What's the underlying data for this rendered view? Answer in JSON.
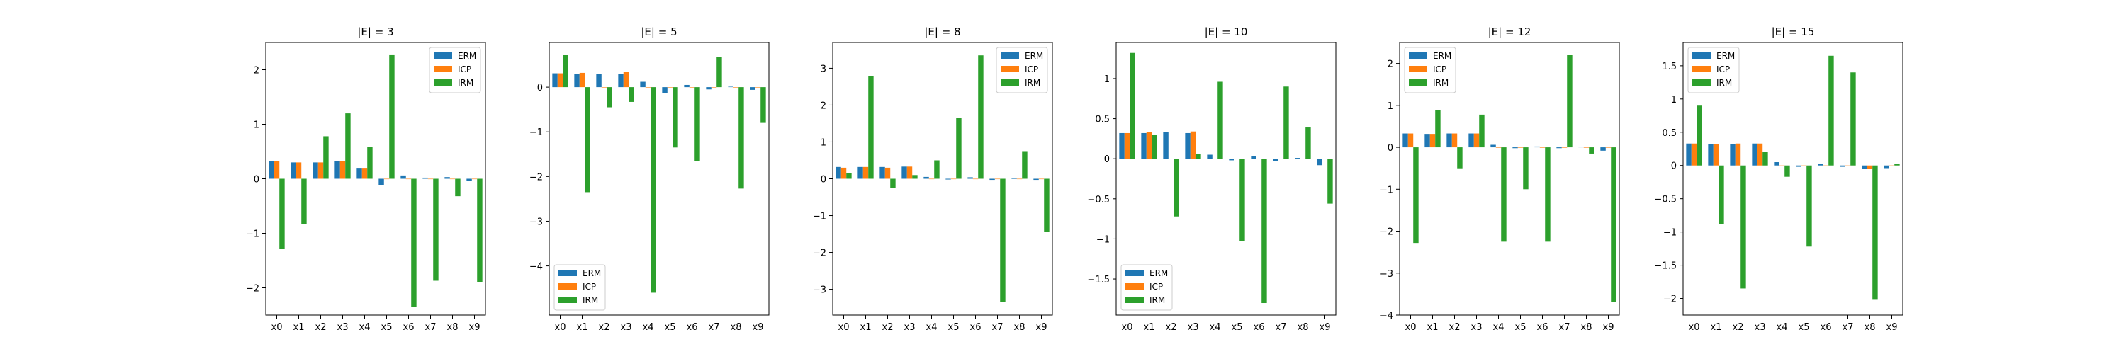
{
  "colors": {
    "ERM": "#1f77b4",
    "ICP": "#ff7f0e",
    "IRM": "#2ca02c"
  },
  "chart_data": [
    {
      "type": "bar",
      "title": "|E| = 3",
      "categories": [
        "x0",
        "x1",
        "x2",
        "x3",
        "x4",
        "x5",
        "x6",
        "x7",
        "x8",
        "x9"
      ],
      "ylim": [
        -2.5,
        2.5
      ],
      "yticks": [
        -2,
        -1,
        0,
        1,
        2
      ],
      "legend_position": "top-right",
      "series": [
        {
          "name": "ERM",
          "values": [
            0.32,
            0.3,
            0.3,
            0.33,
            0.2,
            -0.12,
            0.06,
            0.02,
            0.03,
            -0.04
          ]
        },
        {
          "name": "ICP",
          "values": [
            0.32,
            0.3,
            0.3,
            0.33,
            0.2,
            0.0,
            0.0,
            0.0,
            0.0,
            0.0
          ]
        },
        {
          "name": "IRM",
          "values": [
            -1.28,
            -0.83,
            0.78,
            1.2,
            0.58,
            2.28,
            -2.35,
            -1.87,
            -0.32,
            -1.9
          ]
        }
      ]
    },
    {
      "type": "bar",
      "title": "|E| = 5",
      "categories": [
        "x0",
        "x1",
        "x2",
        "x3",
        "x4",
        "x5",
        "x6",
        "x7",
        "x8",
        "x9"
      ],
      "ylim": [
        -5.1,
        1.0
      ],
      "yticks": [
        -4,
        -3,
        -2,
        -1,
        0
      ],
      "legend_position": "bottom-left",
      "series": [
        {
          "name": "ERM",
          "values": [
            0.31,
            0.3,
            0.3,
            0.3,
            0.12,
            -0.13,
            0.05,
            -0.05,
            0.01,
            -0.06
          ]
        },
        {
          "name": "ICP",
          "values": [
            0.31,
            0.32,
            0.0,
            0.35,
            0.0,
            0.0,
            0.0,
            0.0,
            0.0,
            0.0
          ]
        },
        {
          "name": "IRM",
          "values": [
            0.73,
            -2.35,
            -0.45,
            -0.33,
            -4.6,
            -1.35,
            -1.65,
            0.68,
            -2.27,
            -0.8
          ]
        }
      ]
    },
    {
      "type": "bar",
      "title": "|E| = 8",
      "categories": [
        "x0",
        "x1",
        "x2",
        "x3",
        "x4",
        "x5",
        "x6",
        "x7",
        "x8",
        "x9"
      ],
      "ylim": [
        -3.7,
        3.7
      ],
      "yticks": [
        -3,
        -2,
        -1,
        0,
        1,
        2,
        3
      ],
      "legend_position": "top-right",
      "series": [
        {
          "name": "ERM",
          "values": [
            0.32,
            0.32,
            0.32,
            0.33,
            0.05,
            -0.02,
            0.04,
            -0.03,
            0.01,
            -0.03
          ]
        },
        {
          "name": "ICP",
          "values": [
            0.3,
            0.32,
            0.3,
            0.33,
            0.0,
            0.0,
            0.0,
            0.0,
            0.0,
            0.0
          ]
        },
        {
          "name": "IRM",
          "values": [
            0.15,
            2.78,
            -0.25,
            0.1,
            0.5,
            1.65,
            3.35,
            -3.35,
            0.75,
            -1.45
          ]
        }
      ]
    },
    {
      "type": "bar",
      "title": "|E| = 10",
      "categories": [
        "x0",
        "x1",
        "x2",
        "x3",
        "x4",
        "x5",
        "x6",
        "x7",
        "x8",
        "x9"
      ],
      "ylim": [
        -1.95,
        1.45
      ],
      "yticks": [
        -1.5,
        -1.0,
        -0.5,
        0.0,
        0.5,
        1.0
      ],
      "legend_position": "bottom-left",
      "series": [
        {
          "name": "ERM",
          "values": [
            0.32,
            0.32,
            0.33,
            0.32,
            0.05,
            -0.02,
            0.03,
            -0.03,
            0.01,
            -0.08
          ]
        },
        {
          "name": "ICP",
          "values": [
            0.32,
            0.33,
            0.0,
            0.34,
            0.0,
            0.0,
            0.0,
            0.0,
            0.0,
            0.0
          ]
        },
        {
          "name": "IRM",
          "values": [
            1.32,
            0.3,
            -0.72,
            0.06,
            0.96,
            -1.03,
            -1.8,
            0.9,
            0.39,
            -0.56
          ]
        }
      ]
    },
    {
      "type": "bar",
      "title": "|E| = 12",
      "categories": [
        "x0",
        "x1",
        "x2",
        "x3",
        "x4",
        "x5",
        "x6",
        "x7",
        "x8",
        "x9"
      ],
      "ylim": [
        -4.0,
        2.5
      ],
      "yticks": [
        -4,
        -3,
        -2,
        -1,
        0,
        1,
        2
      ],
      "legend_position": "top-left",
      "series": [
        {
          "name": "ERM",
          "values": [
            0.33,
            0.32,
            0.33,
            0.33,
            0.06,
            -0.02,
            0.02,
            -0.02,
            0.01,
            -0.08
          ]
        },
        {
          "name": "ICP",
          "values": [
            0.33,
            0.32,
            0.33,
            0.33,
            0.0,
            0.0,
            0.0,
            0.0,
            0.0,
            0.0
          ]
        },
        {
          "name": "IRM",
          "values": [
            -2.28,
            0.88,
            -0.5,
            0.78,
            -2.25,
            -1.0,
            -2.25,
            2.2,
            -0.15,
            -3.68
          ]
        }
      ]
    },
    {
      "type": "bar",
      "title": "|E| = 15",
      "categories": [
        "x0",
        "x1",
        "x2",
        "x3",
        "x4",
        "x5",
        "x6",
        "x7",
        "x8",
        "x9"
      ],
      "ylim": [
        -2.25,
        1.85
      ],
      "yticks": [
        -2.0,
        -1.5,
        -1.0,
        -0.5,
        0.0,
        0.5,
        1.0,
        1.5
      ],
      "legend_position": "top-left",
      "series": [
        {
          "name": "ERM",
          "values": [
            0.33,
            0.32,
            0.32,
            0.33,
            0.05,
            -0.02,
            0.02,
            -0.02,
            -0.05,
            -0.04
          ]
        },
        {
          "name": "ICP",
          "values": [
            0.33,
            0.32,
            0.33,
            0.33,
            0.0,
            0.0,
            0.0,
            0.0,
            -0.05,
            0.0
          ]
        },
        {
          "name": "IRM",
          "values": [
            0.9,
            -0.88,
            -1.85,
            0.2,
            -0.17,
            -1.22,
            1.65,
            1.4,
            -2.02,
            0.02
          ]
        }
      ]
    }
  ]
}
